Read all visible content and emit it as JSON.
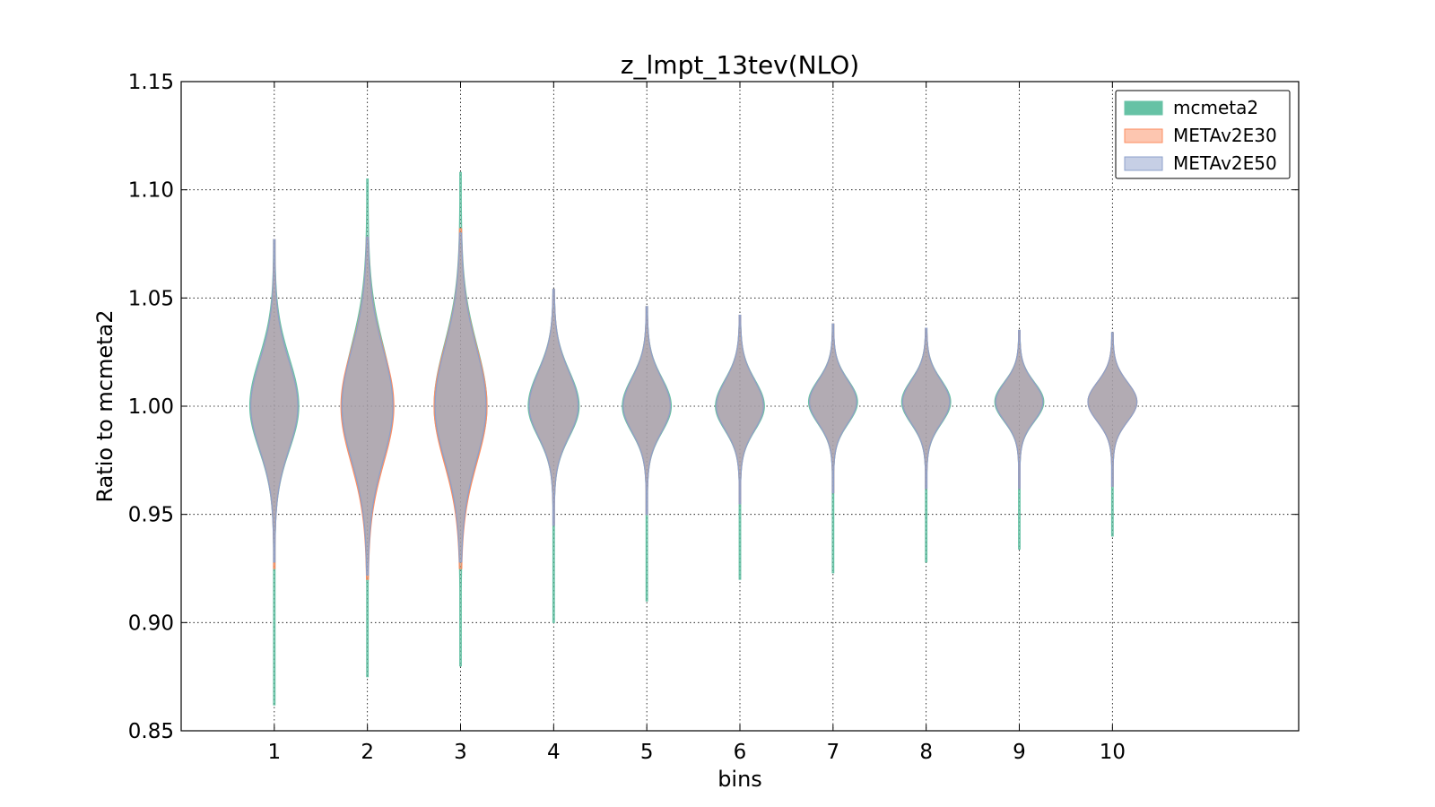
{
  "chart_data": {
    "type": "violin",
    "title": "z_lmpt_13tev(NLO)",
    "xlabel": "bins",
    "ylabel": "Ratio to mcmeta2",
    "xlim": [
      0,
      12
    ],
    "ylim": [
      0.85,
      1.15
    ],
    "x_ticks": [
      "1",
      "2",
      "3",
      "4",
      "5",
      "6",
      "7",
      "8",
      "9",
      "10"
    ],
    "y_ticks": [
      "0.85",
      "0.90",
      "0.95",
      "1.00",
      "1.05",
      "1.10",
      "1.15"
    ],
    "grid": true,
    "legend_position": "top-right",
    "series": [
      {
        "name": "mcmeta2",
        "color": "#66c2a5",
        "violins": [
          {
            "bin": 1,
            "min": 0.862,
            "max": 1.077,
            "center": 1.0,
            "sigma_up": 0.022,
            "sigma_down": 0.02,
            "half_width": 0.25
          },
          {
            "bin": 2,
            "min": 0.875,
            "max": 1.105,
            "center": 1.0,
            "sigma_up": 0.028,
            "sigma_down": 0.025,
            "half_width": 0.26
          },
          {
            "bin": 3,
            "min": 0.88,
            "max": 1.108,
            "center": 1.0,
            "sigma_up": 0.028,
            "sigma_down": 0.025,
            "half_width": 0.27
          },
          {
            "bin": 4,
            "min": 0.9,
            "max": 1.054,
            "center": 1.0,
            "sigma_up": 0.016,
            "sigma_down": 0.014,
            "half_width": 0.26
          },
          {
            "bin": 5,
            "min": 0.91,
            "max": 1.046,
            "center": 1.0,
            "sigma_up": 0.013,
            "sigma_down": 0.012,
            "half_width": 0.25
          },
          {
            "bin": 6,
            "min": 0.92,
            "max": 1.042,
            "center": 1.0,
            "sigma_up": 0.012,
            "sigma_down": 0.011,
            "half_width": 0.25
          },
          {
            "bin": 7,
            "min": 0.923,
            "max": 1.038,
            "center": 1.002,
            "sigma_up": 0.01,
            "sigma_down": 0.01,
            "half_width": 0.25
          },
          {
            "bin": 8,
            "min": 0.928,
            "max": 1.036,
            "center": 1.002,
            "sigma_up": 0.01,
            "sigma_down": 0.01,
            "half_width": 0.25
          },
          {
            "bin": 9,
            "min": 0.934,
            "max": 1.035,
            "center": 1.002,
            "sigma_up": 0.009,
            "sigma_down": 0.009,
            "half_width": 0.25
          },
          {
            "bin": 10,
            "min": 0.94,
            "max": 1.034,
            "center": 1.002,
            "sigma_up": 0.009,
            "sigma_down": 0.009,
            "half_width": 0.25
          }
        ]
      },
      {
        "name": "METAv2E30",
        "color": "#fc8d62",
        "violins": [
          {
            "bin": 1,
            "min": 0.925,
            "max": 1.077,
            "center": 1.0,
            "sigma_up": 0.021,
            "sigma_down": 0.02,
            "half_width": 0.24
          },
          {
            "bin": 2,
            "min": 0.92,
            "max": 1.078,
            "center": 1.0,
            "sigma_up": 0.026,
            "sigma_down": 0.026,
            "half_width": 0.27
          },
          {
            "bin": 3,
            "min": 0.925,
            "max": 1.082,
            "center": 1.0,
            "sigma_up": 0.027,
            "sigma_down": 0.026,
            "half_width": 0.27
          },
          {
            "bin": 4,
            "min": 0.945,
            "max": 1.054,
            "center": 1.0,
            "sigma_up": 0.016,
            "sigma_down": 0.014,
            "half_width": 0.25
          },
          {
            "bin": 5,
            "min": 0.95,
            "max": 1.046,
            "center": 1.0,
            "sigma_up": 0.013,
            "sigma_down": 0.012,
            "half_width": 0.24
          },
          {
            "bin": 6,
            "min": 0.955,
            "max": 1.042,
            "center": 1.0,
            "sigma_up": 0.012,
            "sigma_down": 0.011,
            "half_width": 0.24
          },
          {
            "bin": 7,
            "min": 0.96,
            "max": 1.038,
            "center": 1.002,
            "sigma_up": 0.01,
            "sigma_down": 0.01,
            "half_width": 0.24
          },
          {
            "bin": 8,
            "min": 0.962,
            "max": 1.036,
            "center": 1.002,
            "sigma_up": 0.01,
            "sigma_down": 0.01,
            "half_width": 0.24
          },
          {
            "bin": 9,
            "min": 0.962,
            "max": 1.035,
            "center": 1.002,
            "sigma_up": 0.009,
            "sigma_down": 0.009,
            "half_width": 0.24
          },
          {
            "bin": 10,
            "min": 0.963,
            "max": 1.034,
            "center": 1.002,
            "sigma_up": 0.009,
            "sigma_down": 0.009,
            "half_width": 0.25
          }
        ]
      },
      {
        "name": "METAv2E50",
        "color": "#8da0cb",
        "violins": [
          {
            "bin": 1,
            "min": 0.928,
            "max": 1.077,
            "center": 1.0,
            "sigma_up": 0.021,
            "sigma_down": 0.02,
            "half_width": 0.24
          },
          {
            "bin": 2,
            "min": 0.922,
            "max": 1.078,
            "center": 1.0,
            "sigma_up": 0.026,
            "sigma_down": 0.025,
            "half_width": 0.26
          },
          {
            "bin": 3,
            "min": 0.928,
            "max": 1.08,
            "center": 1.0,
            "sigma_up": 0.027,
            "sigma_down": 0.025,
            "half_width": 0.26
          },
          {
            "bin": 4,
            "min": 0.945,
            "max": 1.054,
            "center": 1.0,
            "sigma_up": 0.016,
            "sigma_down": 0.014,
            "half_width": 0.25
          },
          {
            "bin": 5,
            "min": 0.95,
            "max": 1.046,
            "center": 1.0,
            "sigma_up": 0.013,
            "sigma_down": 0.012,
            "half_width": 0.24
          },
          {
            "bin": 6,
            "min": 0.955,
            "max": 1.042,
            "center": 1.0,
            "sigma_up": 0.012,
            "sigma_down": 0.011,
            "half_width": 0.24
          },
          {
            "bin": 7,
            "min": 0.96,
            "max": 1.038,
            "center": 1.002,
            "sigma_up": 0.01,
            "sigma_down": 0.01,
            "half_width": 0.24
          },
          {
            "bin": 8,
            "min": 0.962,
            "max": 1.036,
            "center": 1.002,
            "sigma_up": 0.01,
            "sigma_down": 0.01,
            "half_width": 0.24
          },
          {
            "bin": 9,
            "min": 0.962,
            "max": 1.035,
            "center": 1.002,
            "sigma_up": 0.009,
            "sigma_down": 0.009,
            "half_width": 0.24
          },
          {
            "bin": 10,
            "min": 0.963,
            "max": 1.034,
            "center": 1.002,
            "sigma_up": 0.009,
            "sigma_down": 0.009,
            "half_width": 0.25
          }
        ]
      }
    ]
  }
}
